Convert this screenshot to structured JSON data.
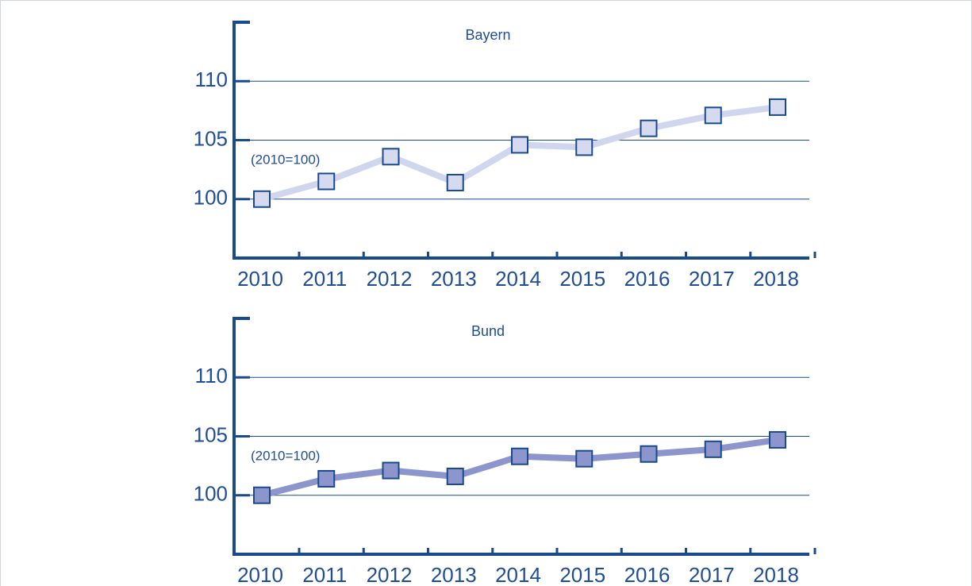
{
  "chart_data": [
    {
      "type": "line",
      "title": "Bayern",
      "annotation": "(2010=100)",
      "categories": [
        "2010",
        "2011",
        "2012",
        "2013",
        "2014",
        "2015",
        "2016",
        "2017",
        "2018"
      ],
      "values": [
        100,
        101.5,
        103.6,
        101.4,
        104.6,
        104.4,
        106.0,
        107.1,
        107.8
      ],
      "color": "#d5daef",
      "line_color": "#d0d6ee",
      "ylim": [
        95,
        115
      ],
      "yticks": [
        100,
        105,
        110
      ],
      "grid": true
    },
    {
      "type": "line",
      "title": "Bund",
      "annotation": "(2010=100)",
      "categories": [
        "2010",
        "2011",
        "2012",
        "2013",
        "2014",
        "2015",
        "2016",
        "2017",
        "2018"
      ],
      "values": [
        100,
        101.4,
        102.1,
        101.6,
        103.3,
        103.1,
        103.5,
        103.9,
        104.7
      ],
      "color": "#8c96cc",
      "line_color": "#8c96cc",
      "ylim": [
        95,
        115
      ],
      "yticks": [
        100,
        105,
        110
      ],
      "grid": true
    }
  ]
}
